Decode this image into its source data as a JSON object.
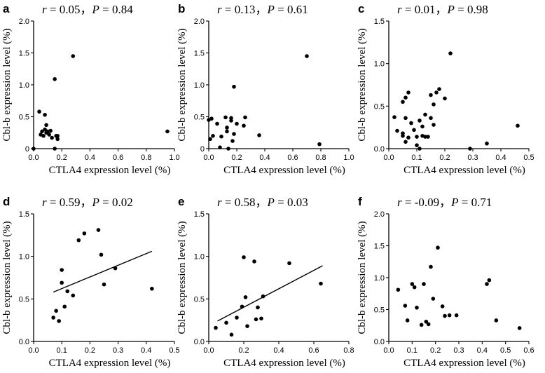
{
  "chart_data": [
    {
      "type": "scatter",
      "panel": "a",
      "stat": {
        "r": "0.05",
        "p": "0.84"
      },
      "xlabel": "CTLA4 expression level (%)",
      "ylabel": "Cbl-b expression level (%)",
      "xlim": [
        0,
        1.0
      ],
      "ylim": [
        0,
        2.0
      ],
      "xticks": [
        "0.0",
        "0.2",
        "0.4",
        "0.6",
        "0.8",
        "1.0"
      ],
      "yticks": [
        "0",
        "0.5",
        "1.0",
        "1.5",
        "2.0"
      ],
      "fit_line": null,
      "x": [
        0.0,
        0.04,
        0.06,
        0.07,
        0.08,
        0.09,
        0.09,
        0.1,
        0.11,
        0.12,
        0.13,
        0.15,
        0.15,
        0.16,
        0.17,
        0.17,
        0.28,
        0.95,
        0.08,
        0.05
      ],
      "y": [
        0.0,
        0.58,
        0.27,
        0.2,
        0.3,
        0.25,
        0.37,
        0.27,
        0.22,
        0.28,
        0.17,
        1.09,
        0.0,
        0.2,
        0.15,
        0.2,
        1.45,
        0.27,
        0.53,
        0.22
      ]
    },
    {
      "type": "scatter",
      "panel": "b",
      "stat": {
        "r": "0.13",
        "p": "0.61"
      },
      "xlabel": "CTLA4 expression level (%)",
      "ylabel": "Cbl-b expression level (%)",
      "xlim": [
        0,
        1.0
      ],
      "ylim": [
        0,
        2.0
      ],
      "xticks": [
        "0.0",
        "0.2",
        "0.4",
        "0.6",
        "0.8",
        "1.0"
      ],
      "yticks": [
        "0",
        "0.5",
        "1.0",
        "1.5",
        "2.0"
      ],
      "fit_line": null,
      "x": [
        0.0,
        0.01,
        0.02,
        0.03,
        0.06,
        0.08,
        0.09,
        0.12,
        0.13,
        0.14,
        0.16,
        0.17,
        0.18,
        0.18,
        0.2,
        0.25,
        0.26,
        0.36,
        0.7,
        0.79,
        0.16,
        0.13
      ],
      "y": [
        0.45,
        0.15,
        0.47,
        0.2,
        0.39,
        0.02,
        0.19,
        0.49,
        0.33,
        0.0,
        0.44,
        0.12,
        0.97,
        0.23,
        0.39,
        0.36,
        0.49,
        0.21,
        1.45,
        0.07,
        0.48,
        0.27
      ]
    },
    {
      "type": "scatter",
      "panel": "c",
      "stat": {
        "r": "0.01",
        "p": "0.98"
      },
      "xlabel": "CTLA4 expression level (%)",
      "ylabel": "Cbl-b expression level (%)",
      "xlim": [
        0,
        0.5
      ],
      "ylim": [
        0,
        1.5
      ],
      "xticks": [
        "0.0",
        "0.1",
        "0.2",
        "0.3",
        "0.4",
        "0.5"
      ],
      "yticks": [
        "0.0",
        "0.5",
        "1.0",
        "1.5"
      ],
      "fit_line": null,
      "x": [
        0.02,
        0.03,
        0.05,
        0.05,
        0.06,
        0.06,
        0.06,
        0.07,
        0.07,
        0.08,
        0.09,
        0.1,
        0.1,
        0.11,
        0.11,
        0.12,
        0.12,
        0.13,
        0.13,
        0.14,
        0.15,
        0.15,
        0.16,
        0.16,
        0.17,
        0.18,
        0.2,
        0.22,
        0.29,
        0.35,
        0.46,
        0.05
      ],
      "y": [
        0.37,
        0.21,
        0.55,
        0.18,
        0.08,
        0.36,
        0.6,
        0.66,
        0.13,
        0.3,
        0.22,
        0.04,
        0.14,
        0.33,
        0.0,
        0.26,
        0.15,
        0.4,
        0.14,
        0.14,
        0.63,
        0.36,
        0.52,
        0.28,
        0.66,
        0.7,
        0.59,
        1.12,
        0.0,
        0.06,
        0.27,
        0.15
      ]
    },
    {
      "type": "scatter",
      "panel": "d",
      "stat": {
        "r": "0.59",
        "p": "0.02"
      },
      "xlabel": "CTLA4 expression level (%)",
      "ylabel": "Cbl-b expression level (%)",
      "xlim": [
        0,
        0.5
      ],
      "ylim": [
        0,
        1.5
      ],
      "xticks": [
        "0.0",
        "0.1",
        "0.2",
        "0.3",
        "0.4",
        "0.5"
      ],
      "yticks": [
        "0.0",
        "0.5",
        "1.0",
        "1.5"
      ],
      "fit_line": {
        "x": [
          0.07,
          0.42
        ],
        "y": [
          0.58,
          1.06
        ]
      },
      "x": [
        0.07,
        0.08,
        0.09,
        0.1,
        0.1,
        0.11,
        0.12,
        0.14,
        0.16,
        0.18,
        0.23,
        0.24,
        0.25,
        0.29,
        0.42
      ],
      "y": [
        0.28,
        0.36,
        0.24,
        0.69,
        0.84,
        0.41,
        0.59,
        0.54,
        1.19,
        1.27,
        1.31,
        1.02,
        0.67,
        0.86,
        0.62
      ]
    },
    {
      "type": "scatter",
      "panel": "e",
      "stat": {
        "r": "0.58",
        "p": "0.03"
      },
      "xlabel": "CTLA4 expression level (%)",
      "ylabel": "Cbl-b expression level (%)",
      "xlim": [
        0,
        0.8
      ],
      "ylim": [
        0,
        1.5
      ],
      "xticks": [
        "0.0",
        "0.2",
        "0.4",
        "0.6",
        "0.8"
      ],
      "yticks": [
        "0.0",
        "0.5",
        "1.0",
        "1.5"
      ],
      "fit_line": {
        "x": [
          0.05,
          0.65
        ],
        "y": [
          0.24,
          0.89
        ]
      },
      "x": [
        0.04,
        0.1,
        0.13,
        0.16,
        0.19,
        0.2,
        0.21,
        0.22,
        0.26,
        0.27,
        0.28,
        0.3,
        0.31,
        0.46,
        0.64
      ],
      "y": [
        0.16,
        0.22,
        0.08,
        0.28,
        0.41,
        0.99,
        0.52,
        0.18,
        0.94,
        0.26,
        0.4,
        0.27,
        0.53,
        0.92,
        0.68
      ]
    },
    {
      "type": "scatter",
      "panel": "f",
      "stat": {
        "r": "-0.09",
        "p": "0.71"
      },
      "xlabel": "CTLA4 expression level (%)",
      "ylabel": "Cbl-b expression level (%)",
      "xlim": [
        0,
        0.6
      ],
      "ylim": [
        0,
        2.0
      ],
      "xticks": [
        "0.0",
        "0.1",
        "0.2",
        "0.3",
        "0.4",
        "0.5",
        "0.6"
      ],
      "yticks": [
        "0.0",
        "0.5",
        "1.0",
        "1.5",
        "2.0"
      ],
      "fit_line": null,
      "x": [
        0.04,
        0.07,
        0.08,
        0.1,
        0.11,
        0.12,
        0.14,
        0.15,
        0.16,
        0.17,
        0.18,
        0.19,
        0.21,
        0.23,
        0.24,
        0.26,
        0.29,
        0.42,
        0.43,
        0.46,
        0.56
      ],
      "y": [
        0.81,
        0.56,
        0.33,
        0.9,
        0.85,
        0.53,
        0.26,
        0.9,
        0.31,
        0.27,
        1.17,
        0.67,
        1.47,
        0.55,
        0.4,
        0.41,
        0.41,
        0.9,
        0.96,
        0.33,
        0.21
      ]
    }
  ]
}
